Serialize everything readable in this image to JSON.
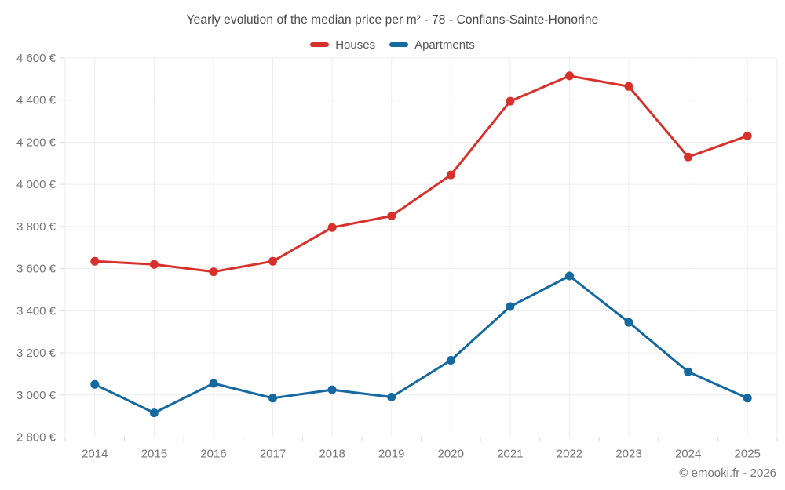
{
  "title": "Yearly evolution of the median price per m² - 78 - Conflans-Sainte-Honorine",
  "footer": "© emooki.fr - 2026",
  "colors": {
    "houses": "#d8312b",
    "apartments": "#1369a0",
    "grid": "#ededed",
    "tick": "#d9d9d9",
    "axis_label": "#757575",
    "title_text": "#484848",
    "background": "#ffffff"
  },
  "chart_data": {
    "type": "line",
    "title": "Yearly evolution of the median price per m² - 78 - Conflans-Sainte-Honorine",
    "categories": [
      "2014",
      "2015",
      "2016",
      "2017",
      "2018",
      "2019",
      "2020",
      "2021",
      "2022",
      "2023",
      "2024",
      "2025"
    ],
    "series": [
      {
        "name": "Houses",
        "key": "houses",
        "color": "#d8312b",
        "values": [
          3635,
          3620,
          3585,
          3635,
          3795,
          3850,
          4045,
          4395,
          4515,
          4465,
          4130,
          4230
        ]
      },
      {
        "name": "Apartments",
        "key": "apartments",
        "color": "#1369a0",
        "values": [
          3050,
          2915,
          3055,
          2985,
          3025,
          2990,
          3165,
          3420,
          3565,
          3345,
          3110,
          2985
        ]
      }
    ],
    "xlabel": "",
    "ylabel": "",
    "ylim": [
      2800,
      4600
    ],
    "y_tick_step": 200,
    "y_tick_labels": [
      "2 800 €",
      "3 000 €",
      "3 200 €",
      "3 400 €",
      "3 600 €",
      "3 800 €",
      "4 000 €",
      "4 200 €",
      "4 400 €",
      "4 600 €"
    ],
    "currency_suffix": "€",
    "grid": true,
    "legend_position": "top",
    "marker": "circle"
  }
}
